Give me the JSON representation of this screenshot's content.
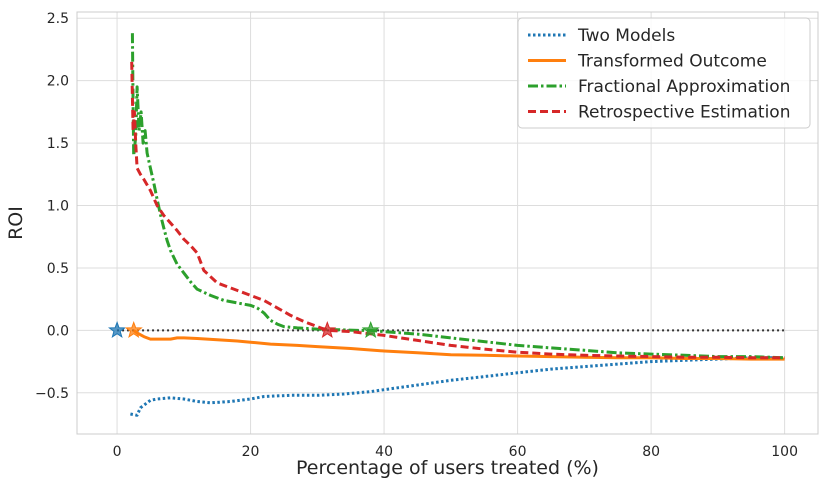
{
  "chart_data": {
    "type": "line",
    "title": "",
    "xlabel": "Percentage of users treated (%)",
    "ylabel": "ROI",
    "xlim": [
      -6,
      105
    ],
    "ylim": [
      -0.83,
      2.55
    ],
    "xticks": [
      0,
      20,
      40,
      60,
      80,
      100
    ],
    "xtick_labels": [
      "0",
      "20",
      "40",
      "60",
      "80",
      "100"
    ],
    "yticks": [
      -0.5,
      0.0,
      0.5,
      1.0,
      1.5,
      2.0,
      2.5
    ],
    "ytick_labels": [
      "−0.5",
      "0.0",
      "0.5",
      "1.0",
      "1.5",
      "2.0",
      "2.5"
    ],
    "grid": true,
    "legend_position": "top-right",
    "reference_line": {
      "y": 0.0,
      "x_range": [
        0,
        100
      ],
      "color": "#333333",
      "style": "dotted"
    },
    "series": [
      {
        "name": "Two Models",
        "color": "#1f77b4",
        "style": "dotted",
        "points": [
          [
            2.0,
            -0.67
          ],
          [
            3.0,
            -0.68
          ],
          [
            3.5,
            -0.62
          ],
          [
            4.0,
            -0.6
          ],
          [
            5.0,
            -0.56
          ],
          [
            6.0,
            -0.55
          ],
          [
            8.0,
            -0.54
          ],
          [
            10.0,
            -0.55
          ],
          [
            12.0,
            -0.57
          ],
          [
            14.0,
            -0.58
          ],
          [
            17.0,
            -0.57
          ],
          [
            20.0,
            -0.55
          ],
          [
            22.0,
            -0.53
          ],
          [
            26.0,
            -0.52
          ],
          [
            30.0,
            -0.52
          ],
          [
            34.0,
            -0.51
          ],
          [
            38.0,
            -0.49
          ],
          [
            42.0,
            -0.46
          ],
          [
            46.0,
            -0.43
          ],
          [
            50.0,
            -0.4
          ],
          [
            55.0,
            -0.37
          ],
          [
            60.0,
            -0.34
          ],
          [
            65.0,
            -0.31
          ],
          [
            70.0,
            -0.29
          ],
          [
            75.0,
            -0.27
          ],
          [
            80.0,
            -0.25
          ],
          [
            85.0,
            -0.24
          ],
          [
            90.0,
            -0.23
          ],
          [
            95.0,
            -0.22
          ],
          [
            100.0,
            -0.22
          ]
        ],
        "marker": {
          "x": 0.0,
          "y": 0.0
        }
      },
      {
        "name": "Transformed Outcome",
        "color": "#ff7f0e",
        "style": "solid",
        "points": [
          [
            2.5,
            0.0
          ],
          [
            3.0,
            -0.02
          ],
          [
            4.0,
            -0.05
          ],
          [
            5.0,
            -0.07
          ],
          [
            6.0,
            -0.07
          ],
          [
            8.0,
            -0.07
          ],
          [
            9.0,
            -0.06
          ],
          [
            10.0,
            -0.06
          ],
          [
            12.0,
            -0.065
          ],
          [
            15.0,
            -0.075
          ],
          [
            18.0,
            -0.085
          ],
          [
            20.0,
            -0.095
          ],
          [
            23.0,
            -0.11
          ],
          [
            27.0,
            -0.12
          ],
          [
            30.0,
            -0.13
          ],
          [
            35.0,
            -0.145
          ],
          [
            40.0,
            -0.165
          ],
          [
            45.0,
            -0.18
          ],
          [
            50.0,
            -0.195
          ],
          [
            55.0,
            -0.2
          ],
          [
            60.0,
            -0.205
          ],
          [
            65.0,
            -0.21
          ],
          [
            70.0,
            -0.215
          ],
          [
            75.0,
            -0.22
          ],
          [
            80.0,
            -0.22
          ],
          [
            85.0,
            -0.225
          ],
          [
            90.0,
            -0.225
          ],
          [
            95.0,
            -0.23
          ],
          [
            100.0,
            -0.23
          ]
        ],
        "marker": {
          "x": 2.5,
          "y": 0.0
        }
      },
      {
        "name": "Fractional Approximation",
        "color": "#2ca02c",
        "style": "dashdot",
        "points": [
          [
            2.3,
            2.38
          ],
          [
            2.4,
            1.8
          ],
          [
            2.5,
            1.4
          ],
          [
            2.8,
            1.55
          ],
          [
            3.0,
            1.95
          ],
          [
            3.3,
            1.6
          ],
          [
            3.6,
            1.75
          ],
          [
            3.9,
            1.5
          ],
          [
            4.2,
            1.6
          ],
          [
            4.5,
            1.42
          ],
          [
            5.0,
            1.3
          ],
          [
            5.5,
            1.18
          ],
          [
            6.0,
            1.05
          ],
          [
            6.5,
            0.93
          ],
          [
            7.0,
            0.82
          ],
          [
            7.5,
            0.72
          ],
          [
            8.0,
            0.64
          ],
          [
            9.0,
            0.53
          ],
          [
            10.0,
            0.46
          ],
          [
            11.0,
            0.39
          ],
          [
            12.0,
            0.33
          ],
          [
            14.0,
            0.28
          ],
          [
            16.0,
            0.24
          ],
          [
            18.0,
            0.22
          ],
          [
            20.0,
            0.2
          ],
          [
            21.0,
            0.18
          ],
          [
            22.0,
            0.14
          ],
          [
            23.0,
            0.08
          ],
          [
            24.0,
            0.05
          ],
          [
            25.0,
            0.03
          ],
          [
            27.0,
            0.02
          ],
          [
            30.0,
            0.01
          ],
          [
            33.0,
            0.005
          ],
          [
            36.0,
            0.0
          ],
          [
            38.0,
            0.0
          ],
          [
            40.0,
            -0.01
          ],
          [
            45.0,
            -0.03
          ],
          [
            50.0,
            -0.06
          ],
          [
            55.0,
            -0.09
          ],
          [
            60.0,
            -0.12
          ],
          [
            65.0,
            -0.14
          ],
          [
            70.0,
            -0.16
          ],
          [
            75.0,
            -0.18
          ],
          [
            80.0,
            -0.19
          ],
          [
            85.0,
            -0.2
          ],
          [
            90.0,
            -0.21
          ],
          [
            95.0,
            -0.21
          ],
          [
            100.0,
            -0.22
          ]
        ],
        "marker": {
          "x": 38.0,
          "y": 0.0
        }
      },
      {
        "name": "Retrospective Estimation",
        "color": "#d62728",
        "style": "dashed",
        "points": [
          [
            2.2,
            2.15
          ],
          [
            2.4,
            1.6
          ],
          [
            2.6,
            1.75
          ],
          [
            2.8,
            1.5
          ],
          [
            3.0,
            1.3
          ],
          [
            3.5,
            1.25
          ],
          [
            4.0,
            1.21
          ],
          [
            5.0,
            1.12
          ],
          [
            6.0,
            1.0
          ],
          [
            7.0,
            0.92
          ],
          [
            8.0,
            0.86
          ],
          [
            9.0,
            0.8
          ],
          [
            10.0,
            0.73
          ],
          [
            11.0,
            0.68
          ],
          [
            12.0,
            0.62
          ],
          [
            13.0,
            0.48
          ],
          [
            15.0,
            0.38
          ],
          [
            18.0,
            0.32
          ],
          [
            20.0,
            0.28
          ],
          [
            22.0,
            0.24
          ],
          [
            24.0,
            0.18
          ],
          [
            26.0,
            0.12
          ],
          [
            28.0,
            0.07
          ],
          [
            30.0,
            0.03
          ],
          [
            31.5,
            0.0
          ],
          [
            35.0,
            -0.01
          ],
          [
            40.0,
            -0.04
          ],
          [
            45.0,
            -0.08
          ],
          [
            50.0,
            -0.12
          ],
          [
            55.0,
            -0.15
          ],
          [
            60.0,
            -0.175
          ],
          [
            65.0,
            -0.19
          ],
          [
            70.0,
            -0.2
          ],
          [
            75.0,
            -0.205
          ],
          [
            80.0,
            -0.21
          ],
          [
            85.0,
            -0.215
          ],
          [
            90.0,
            -0.215
          ],
          [
            95.0,
            -0.22
          ],
          [
            100.0,
            -0.22
          ]
        ],
        "marker": {
          "x": 31.5,
          "y": 0.0
        }
      }
    ]
  }
}
